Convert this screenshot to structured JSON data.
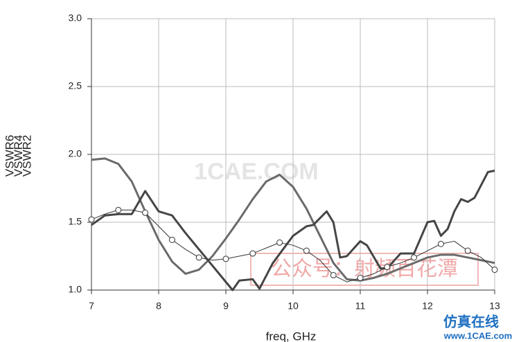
{
  "chart_data": {
    "type": "line",
    "x_label": "freq, GHz",
    "xlim": [
      7,
      13
    ],
    "xticks": [
      7,
      8,
      9,
      10,
      11,
      12,
      13
    ],
    "ylim": [
      1.0,
      3.0
    ],
    "yticks": [
      {
        "value": 1.0,
        "label": "1.0"
      },
      {
        "value": 1.5,
        "label": "1.5"
      },
      {
        "value": 2.0,
        "label": "2.0"
      },
      {
        "value": 2.5,
        "label": "2.5"
      },
      {
        "value": 3.0,
        "label": "3.0"
      }
    ],
    "grid": true,
    "series": [
      {
        "name": "VSWR6",
        "color": "#6a6a6a",
        "width": 3,
        "markers": false,
        "x": [
          7,
          7.2,
          7.4,
          7.6,
          7.8,
          8,
          8.2,
          8.4,
          8.6,
          8.8,
          9,
          9.2,
          9.4,
          9.6,
          9.8,
          10,
          10.2,
          10.4,
          10.6,
          10.8,
          11,
          11.2,
          11.4,
          11.6,
          11.8,
          12,
          12.2,
          12.4,
          12.6,
          12.8,
          13
        ],
        "values": [
          1.96,
          1.97,
          1.93,
          1.8,
          1.58,
          1.37,
          1.21,
          1.12,
          1.15,
          1.25,
          1.38,
          1.52,
          1.67,
          1.8,
          1.85,
          1.76,
          1.6,
          1.4,
          1.2,
          1.08,
          1.07,
          1.09,
          1.12,
          1.16,
          1.2,
          1.24,
          1.26,
          1.26,
          1.24,
          1.22,
          1.2
        ]
      },
      {
        "name": "VSWR4",
        "color": "#454545",
        "width": 3,
        "markers": false,
        "x": [
          7,
          7.2,
          7.4,
          7.6,
          7.8,
          8,
          8.2,
          8.4,
          8.6,
          8.8,
          9,
          9.1,
          9.2,
          9.4,
          9.5,
          9.7,
          10,
          10.2,
          10.3,
          10.5,
          10.6,
          10.7,
          10.8,
          11,
          11.1,
          11.3,
          11.4,
          11.6,
          11.8,
          12,
          12.1,
          12.2,
          12.3,
          12.4,
          12.5,
          12.6,
          12.7,
          12.9,
          13
        ],
        "values": [
          1.48,
          1.55,
          1.56,
          1.56,
          1.73,
          1.58,
          1.55,
          1.42,
          1.3,
          1.18,
          1.06,
          1.0,
          1.07,
          1.08,
          1.01,
          1.2,
          1.4,
          1.47,
          1.48,
          1.58,
          1.5,
          1.24,
          1.25,
          1.36,
          1.33,
          1.16,
          1.16,
          1.27,
          1.27,
          1.5,
          1.51,
          1.4,
          1.45,
          1.58,
          1.67,
          1.65,
          1.68,
          1.87,
          1.88
        ]
      },
      {
        "name": "VSWR2",
        "color": "#333333",
        "width": 1,
        "markers": true,
        "x": [
          7,
          7.2,
          7.4,
          7.6,
          7.8,
          8,
          8.2,
          8.4,
          8.6,
          8.8,
          9,
          9.2,
          9.4,
          9.6,
          9.8,
          10,
          10.2,
          10.4,
          10.6,
          10.8,
          11,
          11.2,
          11.4,
          11.6,
          11.8,
          12,
          12.2,
          12.4,
          12.6,
          12.8,
          13
        ],
        "values": [
          1.52,
          1.56,
          1.59,
          1.59,
          1.57,
          1.47,
          1.37,
          1.3,
          1.24,
          1.22,
          1.23,
          1.25,
          1.27,
          1.31,
          1.35,
          1.33,
          1.29,
          1.22,
          1.11,
          1.06,
          1.09,
          1.12,
          1.17,
          1.2,
          1.24,
          1.29,
          1.34,
          1.36,
          1.29,
          1.24,
          1.15
        ]
      }
    ],
    "watermarks": [
      "1CAE.COM",
      "公众号：射频百花潭",
      "仿真在线",
      "www.1CAE.com"
    ]
  }
}
